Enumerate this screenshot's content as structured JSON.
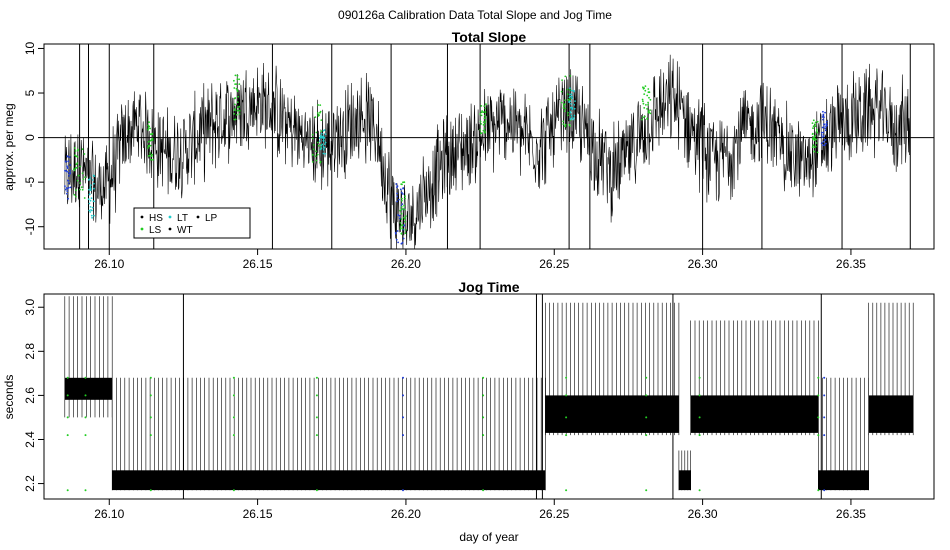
{
  "suptitle": "090126a   Calibration Data Total Slope and Jog Time",
  "xlabel": "day of year",
  "colors": {
    "HS": "#000000",
    "LS": "#22cc22",
    "LT": "#22cccc",
    "WT": "#000000",
    "LP": "#000000",
    "blue_points": "#1f3dd6",
    "data_line": "#000000"
  },
  "chart_data": [
    {
      "type": "line",
      "title": "Total Slope",
      "xlabel": "",
      "ylabel": "approx. per meg",
      "xlim": [
        26.078,
        26.378
      ],
      "ylim": [
        -12.5,
        10.5
      ],
      "x_ticks": [
        "26.10",
        "26.15",
        "26.20",
        "26.25",
        "26.30",
        "26.35"
      ],
      "y_ticks": [
        "10",
        "5",
        "0",
        "-5",
        "-10"
      ],
      "hline": 0,
      "grid": false,
      "legend": {
        "placement": "bottom-left",
        "entries": [
          "HS",
          "LS",
          "LT",
          "WT",
          "LP"
        ]
      },
      "series_trend": {
        "name": "",
        "x": [
          26.085,
          26.09,
          26.095,
          26.1,
          26.105,
          26.11,
          26.115,
          26.12,
          26.125,
          26.13,
          26.135,
          26.14,
          26.145,
          26.15,
          26.155,
          26.16,
          26.165,
          26.17,
          26.175,
          26.18,
          26.185,
          26.19,
          26.195,
          26.2,
          26.205,
          26.21,
          26.215,
          26.22,
          26.225,
          26.23,
          26.235,
          26.24,
          26.245,
          26.25,
          26.255,
          26.26,
          26.265,
          26.27,
          26.275,
          26.28,
          26.285,
          26.29,
          26.295,
          26.3,
          26.305,
          26.31,
          26.315,
          26.32,
          26.325,
          26.33,
          26.335,
          26.34,
          26.345,
          26.35,
          26.355,
          26.36,
          26.365,
          26.37
        ],
        "y": [
          -4.5,
          -3,
          -6,
          -5,
          0,
          1.5,
          -0.5,
          -2,
          -1.5,
          0,
          1.5,
          2.5,
          3.5,
          4,
          3,
          1.5,
          0,
          -1,
          -0.5,
          1,
          2.5,
          1,
          -7,
          -10,
          -7,
          -4,
          -2,
          -1,
          0,
          1,
          2,
          0,
          -1,
          1,
          3,
          1,
          -2,
          -4,
          -2,
          1,
          3,
          4,
          2,
          -1,
          -3,
          -1,
          1,
          2,
          0,
          -2,
          -3,
          -1,
          1,
          2,
          3,
          3,
          1,
          2
        ]
      },
      "spikes_x": [
        26.09,
        26.093,
        26.1,
        26.115,
        26.155,
        26.175,
        26.195,
        26.214,
        26.225,
        26.255,
        26.262,
        26.3,
        26.32,
        26.347,
        26.37
      ]
    },
    {
      "type": "line",
      "title": "Jog Time",
      "xlabel": "day of year",
      "ylabel": "seconds",
      "xlim": [
        26.078,
        26.378
      ],
      "ylim": [
        2.13,
        3.06
      ],
      "x_ticks": [
        "26.10",
        "26.15",
        "26.20",
        "26.25",
        "26.30",
        "26.35"
      ],
      "y_ticks": [
        "3.0",
        "2.8",
        "2.6",
        "2.4",
        "2.2"
      ],
      "grid": false,
      "segments": [
        {
          "x_start": 26.085,
          "x_end": 26.101,
          "low": 2.5,
          "high": 3.05,
          "band_low": 2.58,
          "band_high": 2.68
        },
        {
          "x_start": 26.101,
          "x_end": 26.247,
          "low": 2.17,
          "high": 2.68,
          "band_low": 2.17,
          "band_high": 2.26
        },
        {
          "x_start": 26.247,
          "x_end": 26.292,
          "low": 2.42,
          "high": 3.02,
          "band_low": 2.43,
          "band_high": 2.6
        },
        {
          "x_start": 26.292,
          "x_end": 26.296,
          "low": 2.17,
          "high": 2.35,
          "band_low": 2.17,
          "band_high": 2.26
        },
        {
          "x_start": 26.296,
          "x_end": 26.339,
          "low": 2.42,
          "high": 2.94,
          "band_low": 2.43,
          "band_high": 2.6
        },
        {
          "x_start": 26.339,
          "x_end": 26.356,
          "low": 2.17,
          "high": 2.68,
          "band_low": 2.17,
          "band_high": 2.26
        },
        {
          "x_start": 26.356,
          "x_end": 26.371,
          "low": 2.42,
          "high": 3.02,
          "band_low": 2.43,
          "band_high": 2.6
        }
      ]
    }
  ]
}
